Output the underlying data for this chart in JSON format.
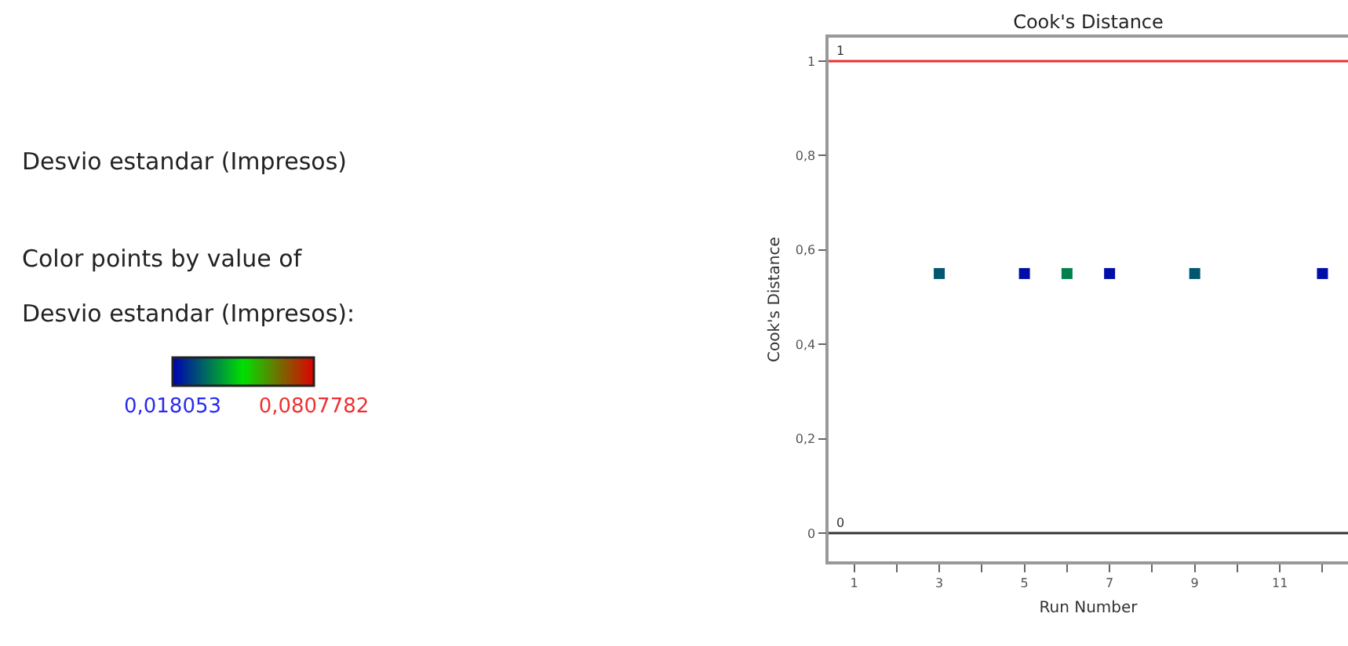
{
  "chart_data": {
    "type": "scatter",
    "title": "Cook's Distance",
    "xlabel": "Run Number",
    "ylabel": "Cook's Distance",
    "annotations": [
      "Desvio estandar (Impresos)",
      "Color points by value of",
      "Desvio estandar (Impresos):"
    ],
    "x": [
      3,
      5,
      6,
      7,
      9,
      12
    ],
    "values": [
      0.55,
      0.55,
      0.55,
      0.55,
      0.55,
      0.55
    ],
    "cvalues": [
      0.03,
      0.02,
      0.036,
      0.02,
      0.03,
      0.02
    ],
    "clim": [
      0.018053,
      0.0807782
    ],
    "cticks": [
      {
        "value": 0.018053,
        "label": "0,018053"
      },
      {
        "value": 0.0807782,
        "label": "0,0807782"
      }
    ],
    "marker": "square",
    "xlim": [
      0.4,
      12.6
    ],
    "ylim": [
      -0.06,
      1.05
    ],
    "xticks": [
      1,
      {
        "value": 2,
        "label": null
      },
      3,
      {
        "value": 4,
        "label": null
      },
      5,
      {
        "value": 6,
        "label": null
      },
      7,
      {
        "value": 8,
        "label": null
      },
      9,
      {
        "value": 10,
        "label": null
      },
      11,
      {
        "value": 12,
        "label": null
      }
    ],
    "yticks": [
      0,
      {
        "value": 0.2,
        "label": "0,2"
      },
      {
        "value": 0.4,
        "label": "0,4"
      },
      {
        "value": 0.6,
        "label": "0,6"
      },
      {
        "value": 0.8,
        "label": "0,8"
      },
      1
    ],
    "ref_lines": [
      {
        "axis": "y",
        "value": 1,
        "label": "1",
        "color": "#e8312f"
      },
      {
        "axis": "y",
        "value": 0,
        "label": "0",
        "color": "#333333"
      }
    ],
    "legend": false
  }
}
